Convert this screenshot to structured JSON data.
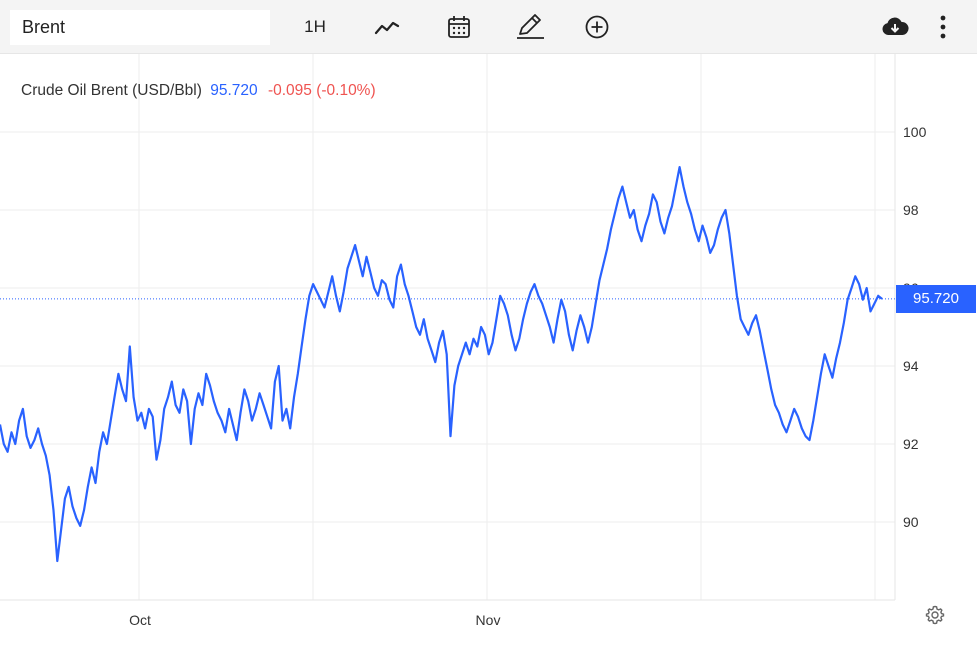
{
  "toolbar": {
    "symbol_value": "Brent",
    "interval_label": "1H",
    "icons": [
      "chart-type-icon",
      "calendar-icon",
      "pencil-icon",
      "plus-circle-icon",
      "cloud-download-icon",
      "more-vertical-icon"
    ]
  },
  "legend": {
    "name": "Crude Oil Brent (USD/Bbl)",
    "last": "95.720",
    "change": "-0.095 (-0.10%)"
  },
  "price_tag": "95.720",
  "colors": {
    "line": "#2962ff",
    "negative": "#ef5350",
    "grid": "#eeeeee",
    "toolbar_bg": "#f4f4f4"
  },
  "chart_data": {
    "type": "line",
    "title": "Crude Oil Brent (USD/Bbl)",
    "xlabel": "",
    "ylabel": "",
    "x_ticks": [
      "Oct",
      "Nov"
    ],
    "y_ticks": [
      90,
      92,
      94,
      96,
      98,
      100
    ],
    "ylim": [
      88.0,
      102.0
    ],
    "grid": true,
    "last_value": 95.72,
    "series": [
      {
        "values": [
          92.5,
          92.0,
          91.8,
          92.3,
          92.0,
          92.6,
          92.9,
          92.2,
          91.9,
          92.1,
          92.4,
          92.0,
          91.7,
          91.2,
          90.3,
          89.0,
          89.8,
          90.6,
          90.9,
          90.4,
          90.1,
          89.9,
          90.3,
          90.9,
          91.4,
          91.0,
          91.8,
          92.3,
          92.0,
          92.6,
          93.2,
          93.8,
          93.4,
          93.1,
          94.5,
          93.2,
          92.6,
          92.8,
          92.4,
          92.9,
          92.7,
          91.6,
          92.1,
          92.9,
          93.2,
          93.6,
          93.0,
          92.8,
          93.4,
          93.1,
          92.0,
          92.9,
          93.3,
          93.0,
          93.8,
          93.5,
          93.1,
          92.8,
          92.6,
          92.3,
          92.9,
          92.5,
          92.1,
          92.8,
          93.4,
          93.1,
          92.6,
          92.9,
          93.3,
          93.0,
          92.7,
          92.4,
          93.6,
          94.0,
          92.6,
          92.9,
          92.4,
          93.2,
          93.8,
          94.5,
          95.2,
          95.8,
          96.1,
          95.9,
          95.7,
          95.5,
          95.9,
          96.3,
          95.8,
          95.4,
          95.9,
          96.5,
          96.8,
          97.1,
          96.7,
          96.3,
          96.8,
          96.4,
          96.0,
          95.8,
          96.2,
          96.1,
          95.7,
          95.5,
          96.3,
          96.6,
          96.1,
          95.8,
          95.4,
          95.0,
          94.8,
          95.2,
          94.7,
          94.4,
          94.1,
          94.6,
          94.9,
          94.3,
          92.2,
          93.5,
          94.0,
          94.3,
          94.6,
          94.3,
          94.7,
          94.5,
          95.0,
          94.8,
          94.3,
          94.6,
          95.2,
          95.8,
          95.6,
          95.3,
          94.8,
          94.4,
          94.7,
          95.2,
          95.6,
          95.9,
          96.1,
          95.8,
          95.6,
          95.3,
          95.0,
          94.6,
          95.2,
          95.7,
          95.4,
          94.8,
          94.4,
          94.9,
          95.3,
          95.0,
          94.6,
          95.0,
          95.6,
          96.2,
          96.6,
          97.0,
          97.5,
          97.9,
          98.3,
          98.6,
          98.2,
          97.8,
          98.0,
          97.5,
          97.2,
          97.6,
          97.9,
          98.4,
          98.2,
          97.7,
          97.4,
          97.8,
          98.1,
          98.6,
          99.1,
          98.6,
          98.2,
          97.9,
          97.5,
          97.2,
          97.6,
          97.3,
          96.9,
          97.1,
          97.5,
          97.8,
          98.0,
          97.4,
          96.6,
          95.8,
          95.2,
          95.0,
          94.8,
          95.1,
          95.3,
          94.9,
          94.4,
          93.9,
          93.4,
          93.0,
          92.8,
          92.5,
          92.3,
          92.6,
          92.9,
          92.7,
          92.4,
          92.2,
          92.1,
          92.6,
          93.2,
          93.8,
          94.3,
          94.0,
          93.7,
          94.2,
          94.6,
          95.1,
          95.7,
          96.0,
          96.3,
          96.1,
          95.7,
          96.0,
          95.4,
          95.6,
          95.8,
          95.72
        ]
      }
    ]
  }
}
